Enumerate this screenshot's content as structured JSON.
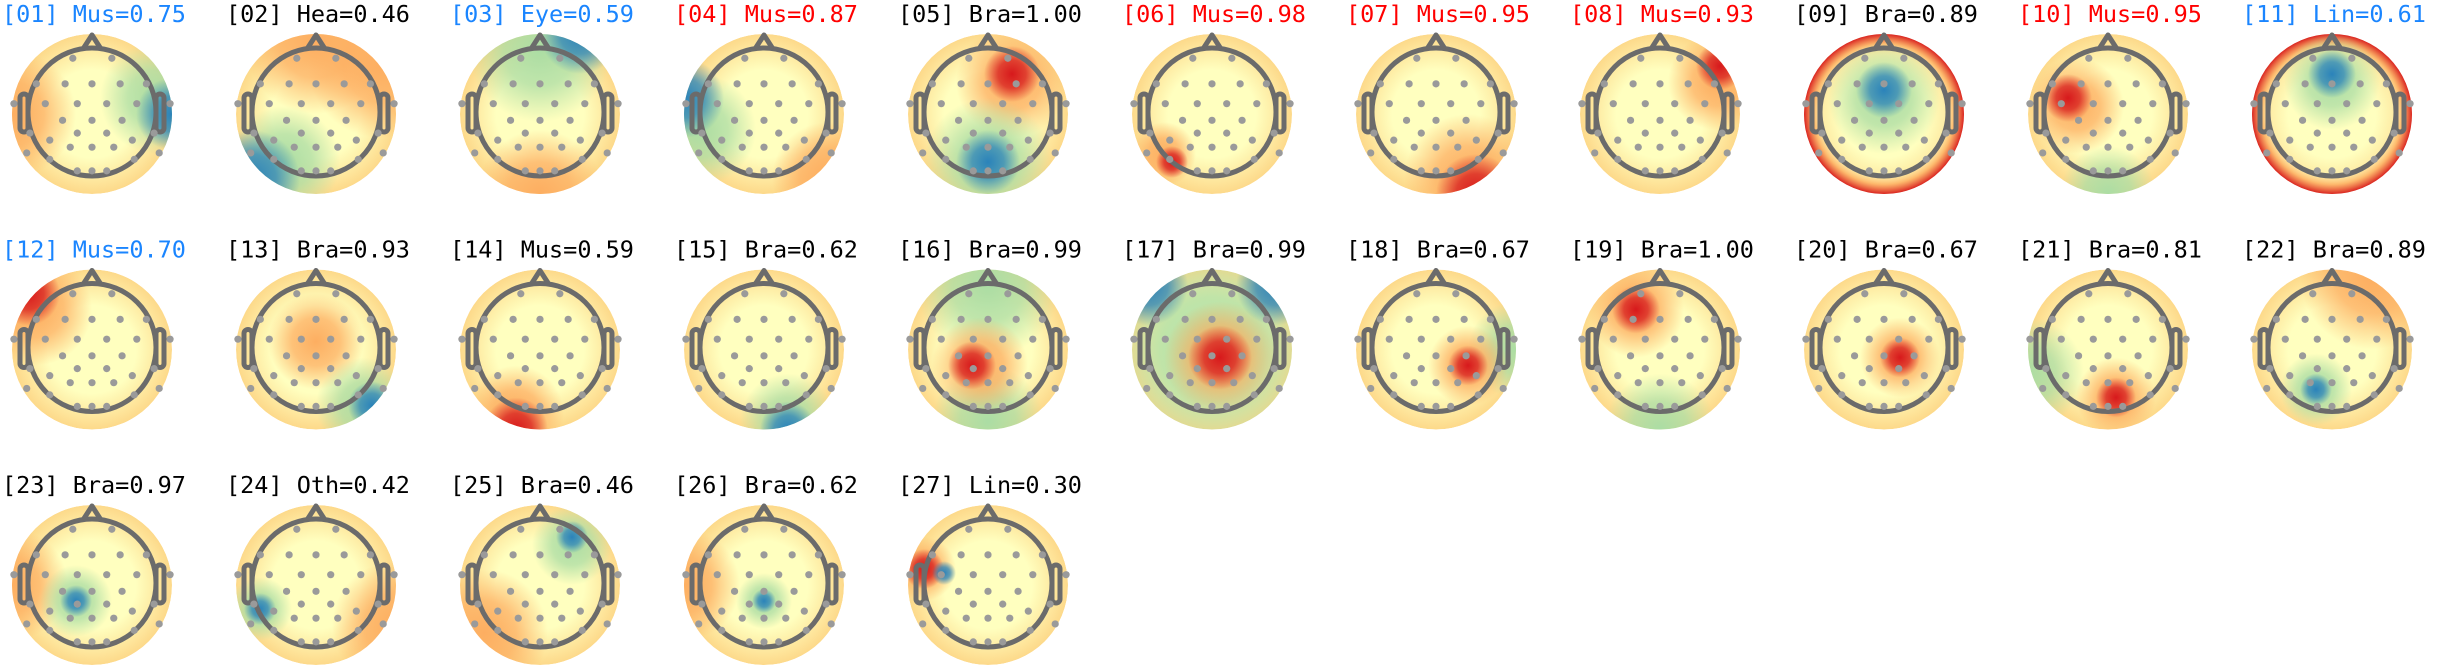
{
  "colors": {
    "blue": "#1a85ff",
    "red": "#ff0000",
    "black": "#000000",
    "head": "#6b6b6b",
    "electrode": "#9a9a9a"
  },
  "colormap": {
    "red": "#d7191c",
    "orange": "#fdae61",
    "yellow": "#ffffbf",
    "green": "#abdda4",
    "blue": "#2b83ba"
  },
  "components": [
    {
      "label": "[01] Mus=0.75",
      "color": "blue"
    },
    {
      "label": "[02] Hea=0.46",
      "color": "black"
    },
    {
      "label": "[03] Eye=0.59",
      "color": "blue"
    },
    {
      "label": "[04] Mus=0.87",
      "color": "red"
    },
    {
      "label": "[05] Bra=1.00",
      "color": "black"
    },
    {
      "label": "[06] Mus=0.98",
      "color": "red"
    },
    {
      "label": "[07] Mus=0.95",
      "color": "red"
    },
    {
      "label": "[08] Mus=0.93",
      "color": "red"
    },
    {
      "label": "[09] Bra=0.89",
      "color": "black"
    },
    {
      "label": "[10] Mus=0.95",
      "color": "red"
    },
    {
      "label": "[11] Lin=0.61",
      "color": "blue"
    },
    {
      "label": "[12] Mus=0.70",
      "color": "blue"
    },
    {
      "label": "[13] Bra=0.93",
      "color": "black"
    },
    {
      "label": "[14] Mus=0.59",
      "color": "black"
    },
    {
      "label": "[15] Bra=0.62",
      "color": "black"
    },
    {
      "label": "[16] Bra=0.99",
      "color": "black"
    },
    {
      "label": "[17] Bra=0.99",
      "color": "black"
    },
    {
      "label": "[18] Bra=0.67",
      "color": "black"
    },
    {
      "label": "[19] Bra=1.00",
      "color": "black"
    },
    {
      "label": "[20] Bra=0.67",
      "color": "black"
    },
    {
      "label": "[21] Bra=0.81",
      "color": "black"
    },
    {
      "label": "[22] Bra=0.89",
      "color": "black"
    },
    {
      "label": "[23] Bra=0.97",
      "color": "black"
    },
    {
      "label": "[24] Oth=0.42",
      "color": "black"
    },
    {
      "label": "[25] Bra=0.46",
      "color": "black"
    },
    {
      "label": "[26] Bra=0.62",
      "color": "black"
    },
    {
      "label": "[27] Lin=0.30",
      "color": "black"
    }
  ]
}
